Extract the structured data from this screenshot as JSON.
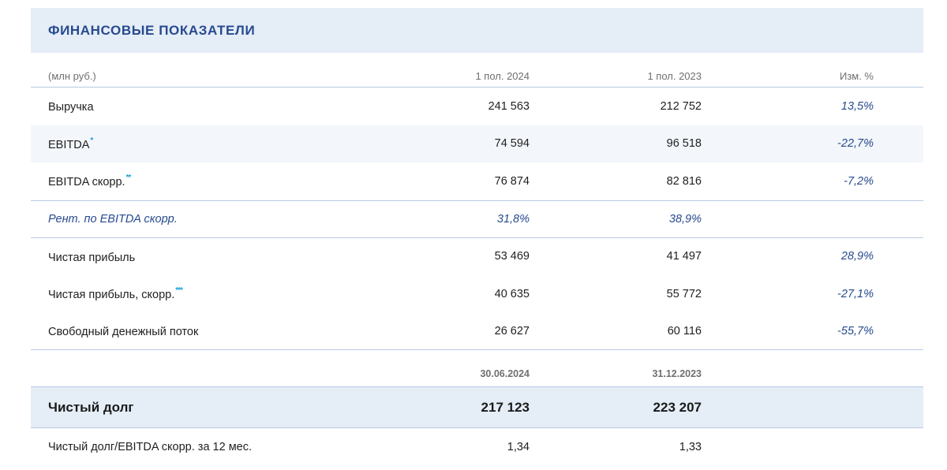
{
  "title": "ФИНАНСОВЫЕ ПОКАЗАТЕЛИ",
  "header": {
    "units": "(млн руб.)",
    "col1": "1 пол. 2024",
    "col2": "1 пол. 2023",
    "col3": "Изм. %"
  },
  "rows": [
    {
      "label": "Выручка",
      "footnote": "",
      "v1": "241 563",
      "v2": "212 752",
      "chg": "13,5%"
    },
    {
      "label": "EBITDA",
      "footnote": "*",
      "v1": "74 594",
      "v2": "96 518",
      "chg": "-22,7%"
    },
    {
      "label": "EBITDA скорр.",
      "footnote": "**",
      "v1": "76 874",
      "v2": "82 816",
      "chg": "-7,2%"
    }
  ],
  "margin": {
    "label": "Рент. по EBITDA скорр.",
    "v1": "31,8%",
    "v2": "38,9%"
  },
  "rows2": [
    {
      "label": "Чистая прибыль",
      "footnote": "",
      "v1": "53 469",
      "v2": "41 497",
      "chg": "28,9%"
    },
    {
      "label": "Чистая прибыль, скорр.",
      "footnote": "***",
      "v1": "40 635",
      "v2": "55 772",
      "chg": "-27,1%"
    },
    {
      "label": "Свободный денежный поток",
      "footnote": "",
      "v1": "26 627",
      "v2": "60 116",
      "chg": "-55,7%"
    }
  ],
  "dates": {
    "d1": "30.06.2024",
    "d2": "31.12.2023"
  },
  "net_debt": {
    "label": "Чистый долг",
    "v1": "217 123",
    "v2": "223 207"
  },
  "ratio": {
    "label": "Чистый долг/EBITDA скорр. за 12 мес.",
    "v1": "1,34",
    "v2": "1,33"
  }
}
